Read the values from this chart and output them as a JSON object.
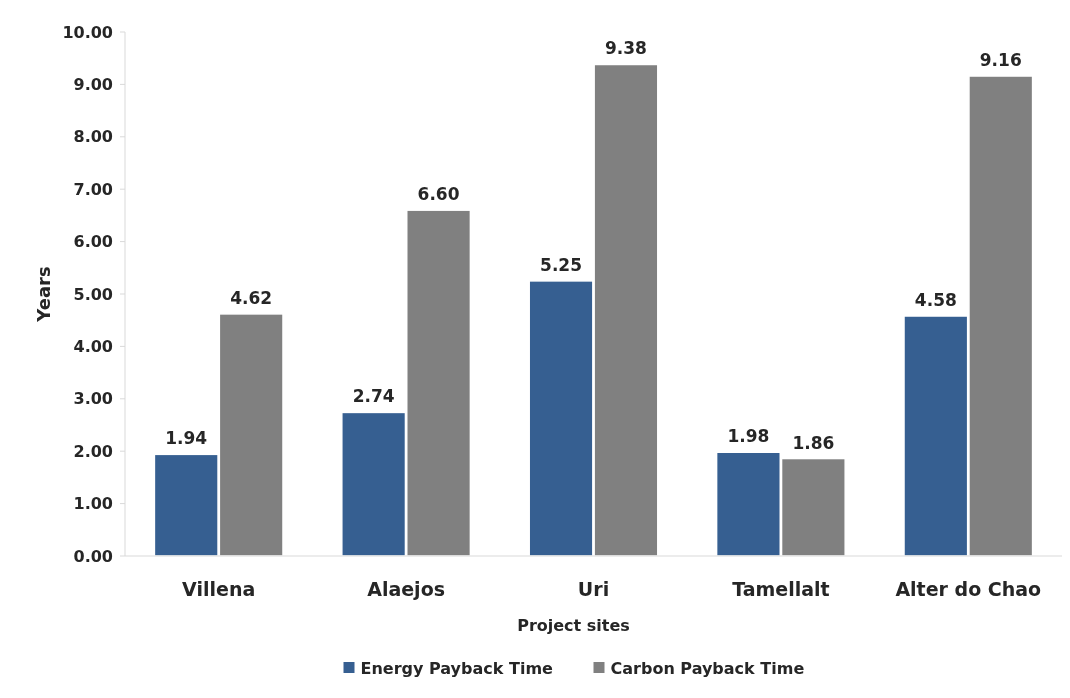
{
  "chart_data": {
    "type": "bar",
    "xlabel": "Project sites",
    "ylabel": "Years",
    "categories": [
      "Villena",
      "Alaejos",
      "Uri",
      "Tamellalt",
      "Alter do Chao"
    ],
    "series": [
      {
        "name": "Energy Payback Time",
        "color": "#365f91",
        "values": [
          1.94,
          2.74,
          5.25,
          1.98,
          4.58
        ]
      },
      {
        "name": "Carbon Payback Time",
        "color": "#808080",
        "values": [
          4.62,
          6.6,
          9.38,
          1.86,
          9.16
        ]
      }
    ],
    "ylim": [
      0,
      10
    ],
    "yticks": [
      {
        "value": 0,
        "label": "0.00"
      },
      {
        "value": 1,
        "label": "1.00"
      },
      {
        "value": 2,
        "label": "2.00"
      },
      {
        "value": 3,
        "label": "3.00"
      },
      {
        "value": 4,
        "label": "4.00"
      },
      {
        "value": 5,
        "label": "5.00"
      },
      {
        "value": 6,
        "label": "6.00"
      },
      {
        "value": 7,
        "label": "7.00"
      },
      {
        "value": 8,
        "label": "8.00"
      },
      {
        "value": 9,
        "label": "9.00"
      },
      {
        "value": 10,
        "label": "10.00"
      }
    ],
    "value_labels": [
      [
        "1.94",
        "2.74",
        "5.25",
        "1.98",
        "4.58"
      ],
      [
        "4.62",
        "6.60",
        "9.38",
        "1.86",
        "9.16"
      ]
    ],
    "grid": false,
    "legend": "bottom"
  }
}
